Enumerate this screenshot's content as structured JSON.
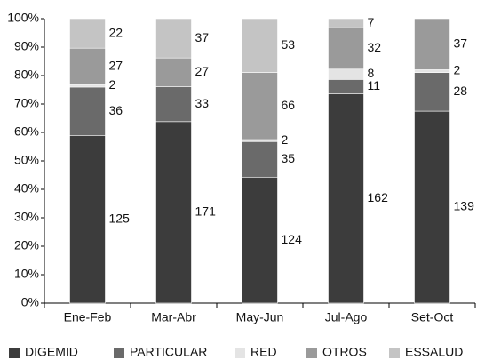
{
  "chart_data": {
    "type": "bar",
    "stacked_percent": true,
    "categories": [
      "Ene-Feb",
      "Mar-Abr",
      "May-Jun",
      "Jul-Ago",
      "Set-Oct"
    ],
    "series": [
      {
        "name": "DIGEMID",
        "color": "#3c3c3c",
        "values": [
          125,
          171,
          124,
          162,
          139
        ]
      },
      {
        "name": "PARTICULAR",
        "color": "#6a6a6a",
        "values": [
          36,
          33,
          35,
          11,
          28
        ]
      },
      {
        "name": "RED",
        "color": "#e4e4e4",
        "values": [
          2,
          null,
          2,
          8,
          2
        ]
      },
      {
        "name": "OTROS",
        "color": "#9a9a9a",
        "values": [
          27,
          27,
          66,
          32,
          37
        ]
      },
      {
        "name": "ESSALUD",
        "color": "#c4c4c4",
        "values": [
          22,
          37,
          53,
          7,
          null
        ]
      }
    ],
    "ylim": [
      0,
      100
    ],
    "yticks": [
      {
        "value": 0,
        "label": "0%"
      },
      {
        "value": 10,
        "label": "10%"
      },
      {
        "value": 20,
        "label": "20%"
      },
      {
        "value": 30,
        "label": "30%"
      },
      {
        "value": 40,
        "label": "40%"
      },
      {
        "value": 50,
        "label": "50%"
      },
      {
        "value": 60,
        "label": "60%"
      },
      {
        "value": 70,
        "label": "70%"
      },
      {
        "value": 80,
        "label": "80%"
      },
      {
        "value": 90,
        "label": "90%"
      },
      {
        "value": 100,
        "label": "100%"
      }
    ],
    "legend": "bottom"
  }
}
